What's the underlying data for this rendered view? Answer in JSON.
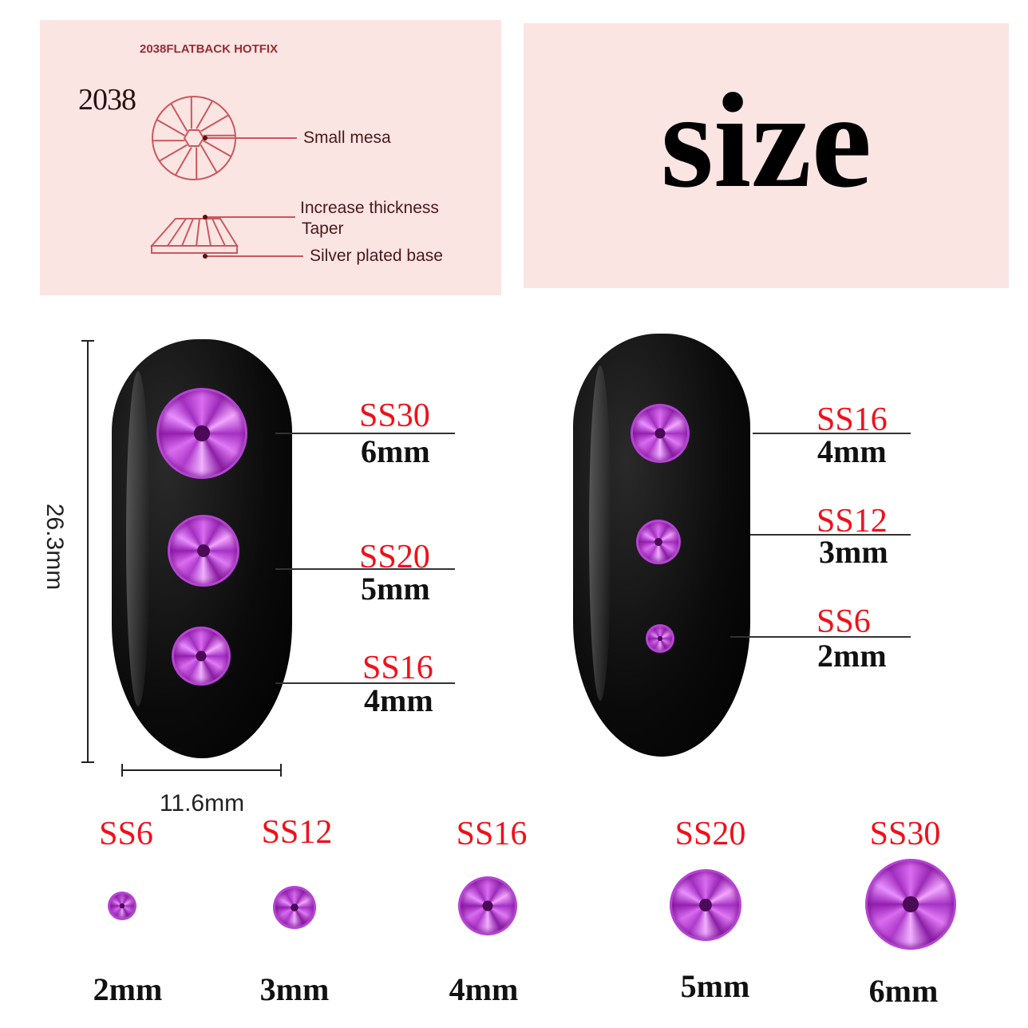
{
  "diagram_panel": {
    "header": "2038FLATBACK HOTFIX",
    "model": "2038",
    "callouts": [
      "Small mesa",
      "Increase thickness",
      "Taper",
      "Silver plated base"
    ]
  },
  "title_panel": {
    "title": "size"
  },
  "dimensions": {
    "height": "26.3mm",
    "width": "11.6mm"
  },
  "left_nail": [
    {
      "code": "SS30",
      "size": "6mm"
    },
    {
      "code": "SS20",
      "size": "5mm"
    },
    {
      "code": "SS16",
      "size": "4mm"
    }
  ],
  "right_nail": [
    {
      "code": "SS16",
      "size": "4mm"
    },
    {
      "code": "SS12",
      "size": "3mm"
    },
    {
      "code": "SS6",
      "size": "2mm"
    }
  ],
  "size_chart": [
    {
      "code": "SS6",
      "size": "2mm"
    },
    {
      "code": "SS12",
      "size": "3mm"
    },
    {
      "code": "SS16",
      "size": "4mm"
    },
    {
      "code": "SS20",
      "size": "5mm"
    },
    {
      "code": "SS30",
      "size": "6mm"
    }
  ],
  "colors": {
    "panel": "#fbe5e3",
    "label_red": "#f0101a",
    "stone": "#c34ee0",
    "diagram_line": "#c9585c"
  }
}
